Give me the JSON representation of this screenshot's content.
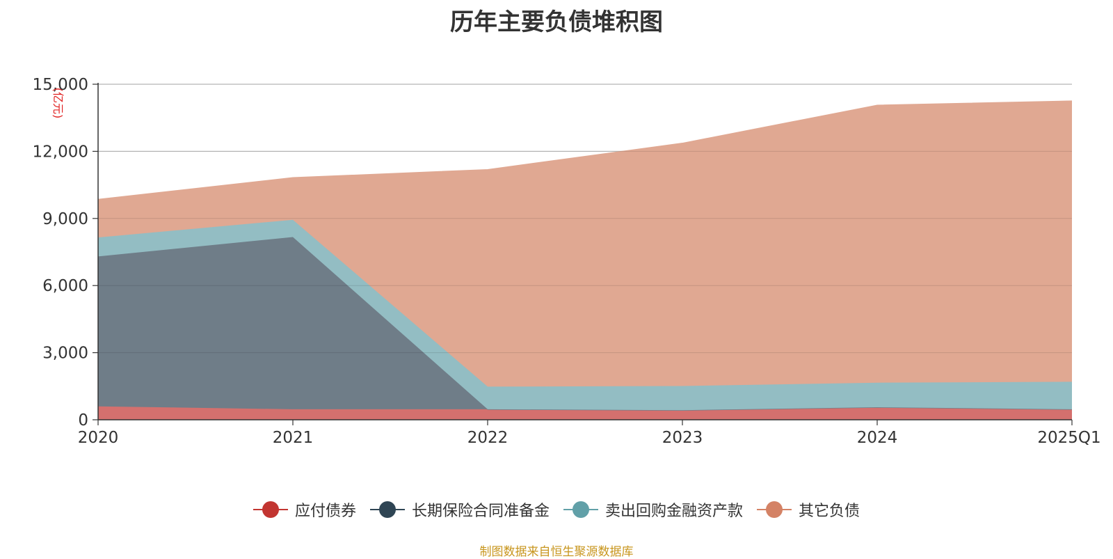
{
  "chart_data": {
    "type": "area",
    "stacked": true,
    "title": "历年主要负债堆积图",
    "unit_label": "(亿元)",
    "categories": [
      "2020",
      "2021",
      "2022",
      "2023",
      "2024",
      "2025Q1"
    ],
    "y_ticks": [
      "0",
      "3,000",
      "6,000",
      "9,000",
      "12,000",
      "15,000"
    ],
    "ylim": [
      0,
      15000
    ],
    "grid": true,
    "legend_position": "bottom",
    "series": [
      {
        "name": "应付债券",
        "values": [
          600,
          470,
          470,
          430,
          560,
          470
        ],
        "color": "#c23531",
        "fill": "#d4706e"
      },
      {
        "name": "长期保险合同准备金",
        "values": [
          6700,
          7700,
          0,
          0,
          0,
          0
        ],
        "color": "#2f4554",
        "fill": "#6f7d88"
      },
      {
        "name": "卖出回购金融资产款",
        "values": [
          850,
          770,
          1010,
          1080,
          1100,
          1230
        ],
        "color": "#61a0a8",
        "fill": "#93bdc3"
      },
      {
        "name": "其它负债",
        "values": [
          1700,
          1880,
          9700,
          10850,
          12400,
          12550
        ],
        "color": "#d48265",
        "fill": "#e0a892"
      }
    ]
  },
  "source_note": "制图数据来自恒生聚源数据库"
}
